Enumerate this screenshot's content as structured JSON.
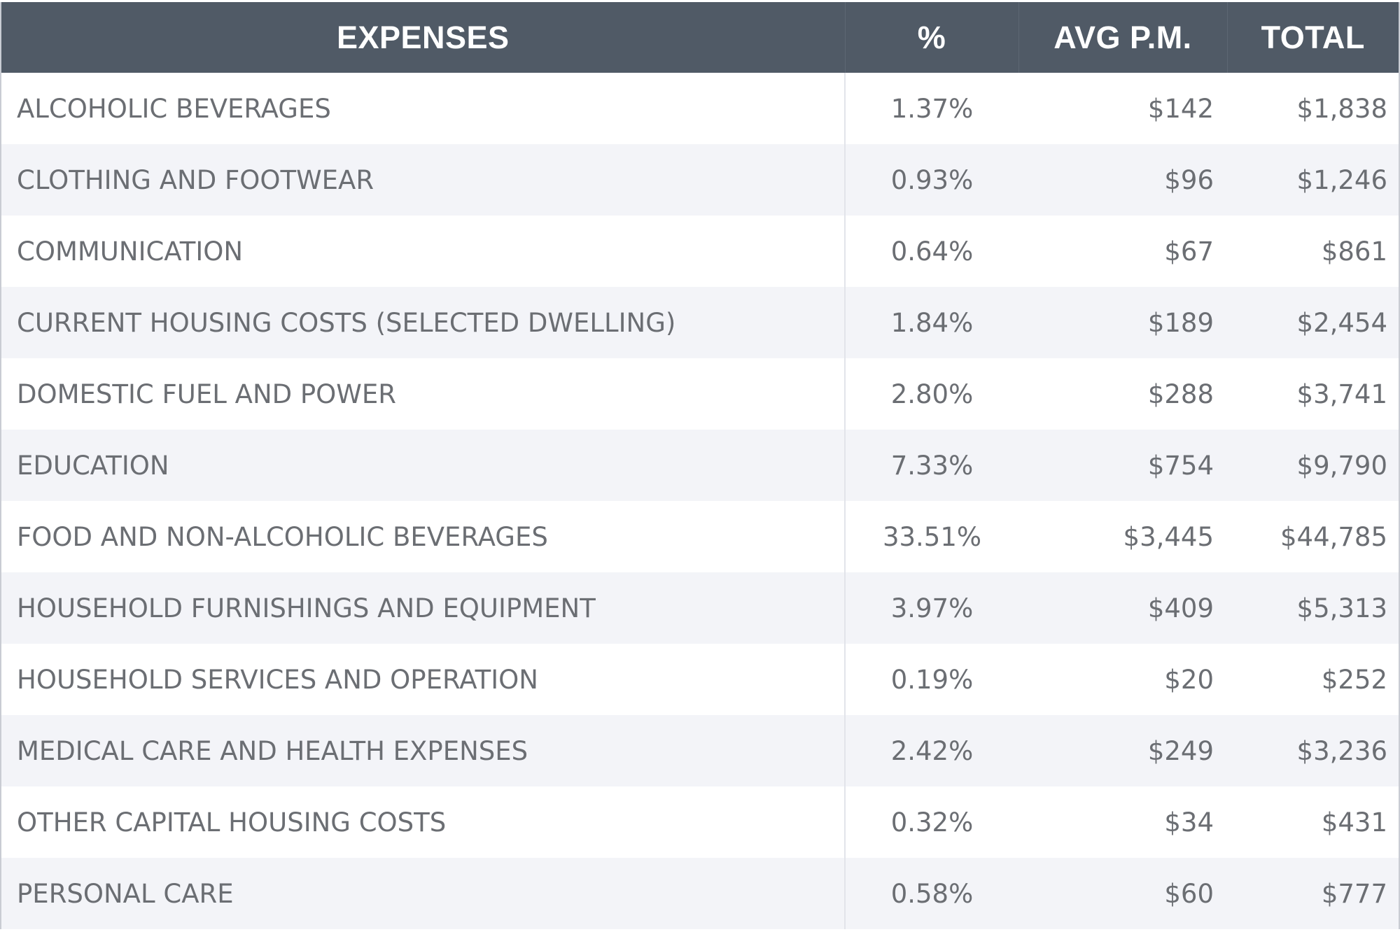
{
  "table": {
    "headers": {
      "expenses": "EXPENSES",
      "percent": "%",
      "avg_pm": "AVG P.M.",
      "total": "TOTAL"
    },
    "rows": [
      {
        "name": "ALCOHOLIC BEVERAGES",
        "percent": "1.37%",
        "avg_pm": "$142",
        "total": "$1,838"
      },
      {
        "name": "CLOTHING AND FOOTWEAR",
        "percent": "0.93%",
        "avg_pm": "$96",
        "total": "$1,246"
      },
      {
        "name": "COMMUNICATION",
        "percent": "0.64%",
        "avg_pm": "$67",
        "total": "$861"
      },
      {
        "name": "CURRENT HOUSING COSTS (SELECTED DWELLING)",
        "percent": "1.84%",
        "avg_pm": "$189",
        "total": "$2,454"
      },
      {
        "name": "DOMESTIC FUEL AND POWER",
        "percent": "2.80%",
        "avg_pm": "$288",
        "total": "$3,741"
      },
      {
        "name": "EDUCATION",
        "percent": "7.33%",
        "avg_pm": "$754",
        "total": "$9,790"
      },
      {
        "name": "FOOD AND NON-ALCOHOLIC BEVERAGES",
        "percent": "33.51%",
        "avg_pm": "$3,445",
        "total": "$44,785"
      },
      {
        "name": "HOUSEHOLD FURNISHINGS AND EQUIPMENT",
        "percent": "3.97%",
        "avg_pm": "$409",
        "total": "$5,313"
      },
      {
        "name": "HOUSEHOLD SERVICES AND OPERATION",
        "percent": "0.19%",
        "avg_pm": "$20",
        "total": "$252"
      },
      {
        "name": "MEDICAL CARE AND HEALTH EXPENSES",
        "percent": "2.42%",
        "avg_pm": "$249",
        "total": "$3,236"
      },
      {
        "name": "OTHER CAPITAL HOUSING COSTS",
        "percent": "0.32%",
        "avg_pm": "$34",
        "total": "$431"
      },
      {
        "name": "PERSONAL CARE",
        "percent": "0.58%",
        "avg_pm": "$60",
        "total": "$777"
      }
    ]
  },
  "colors": {
    "header_bg": "#505a66",
    "header_text": "#ffffff",
    "row_alt_bg": "#f3f4f8",
    "cell_text": "#6b6e73"
  }
}
